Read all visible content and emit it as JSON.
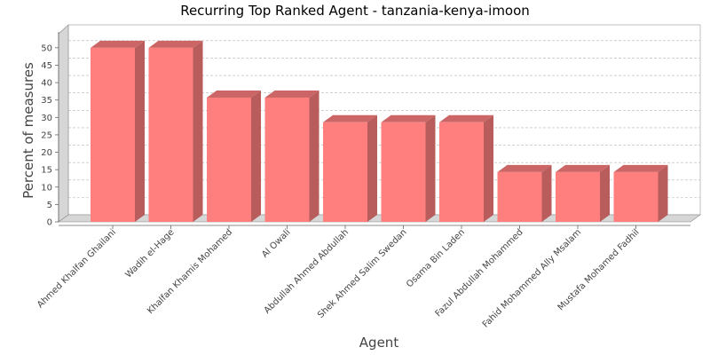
{
  "chart_data": {
    "type": "bar",
    "title": "Recurring Top Ranked Agent - tanzania-kenya-imoon",
    "xlabel": "Agent",
    "ylabel": "Percent of measures",
    "ylim": [
      0,
      52
    ],
    "yticks": [
      0,
      5,
      10,
      15,
      20,
      25,
      30,
      35,
      40,
      45,
      50
    ],
    "grid": true,
    "categories": [
      "Ahmed Khalfan Ghailani",
      "Wadih el-Hage",
      "Khalfan Khamis Mohamed",
      "Al Owali",
      "Abdullah Ahmed Abdullah",
      "Shek Ahmed Salim Swedan",
      "Osama Bin Laden",
      "Fazul Abdullah Mohammed",
      "Fahid Mohammed Ally Msalam",
      "Mustafa Mohamed Fadhil"
    ],
    "values": [
      50,
      50,
      35.7,
      35.7,
      28.6,
      28.6,
      28.6,
      14.3,
      14.3,
      14.3
    ],
    "colors": {
      "bar_front": "#ff7f7f",
      "bar_top": "#cc6666",
      "bar_side": "#b85c5c"
    }
  }
}
